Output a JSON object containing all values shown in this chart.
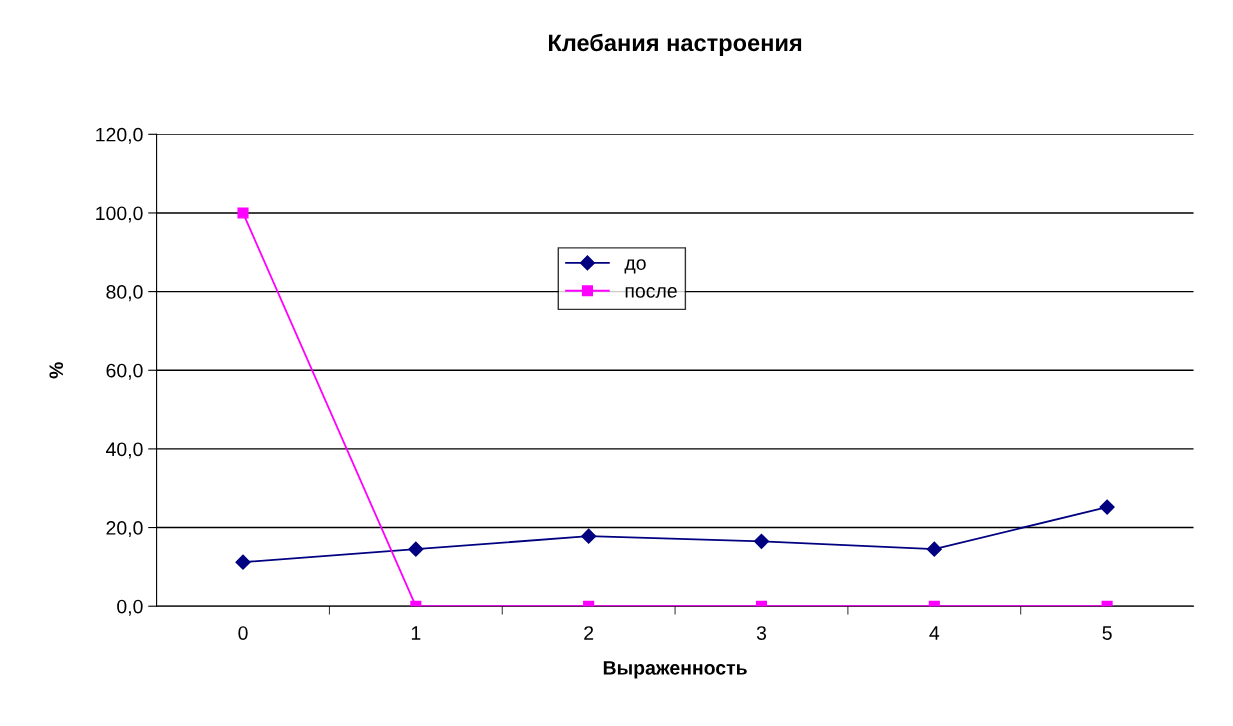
{
  "chart_data": {
    "type": "line",
    "title": "Клебания настроения",
    "xlabel": "Выраженность",
    "ylabel": "%",
    "categories": [
      "0",
      "1",
      "2",
      "3",
      "4",
      "5"
    ],
    "series": [
      {
        "name": "до",
        "color": "#000080",
        "marker": "diamond",
        "values": [
          11.2,
          14.5,
          17.8,
          16.5,
          14.5,
          25.2
        ]
      },
      {
        "name": "после",
        "color": "#ff00ff",
        "marker": "square",
        "values": [
          100.0,
          0.0,
          0.0,
          0.0,
          0.0,
          0.0
        ]
      }
    ],
    "ylim": [
      0,
      120
    ],
    "yticks": [
      {
        "value": 0,
        "label": "0,0"
      },
      {
        "value": 20,
        "label": "20,0"
      },
      {
        "value": 40,
        "label": "40,0"
      },
      {
        "value": 60,
        "label": "60,0"
      },
      {
        "value": 80,
        "label": "80,0"
      },
      {
        "value": 100,
        "label": "100,0"
      },
      {
        "value": 120,
        "label": "120,0"
      }
    ],
    "grid": "y",
    "legend": "top",
    "line_style": "solid"
  }
}
